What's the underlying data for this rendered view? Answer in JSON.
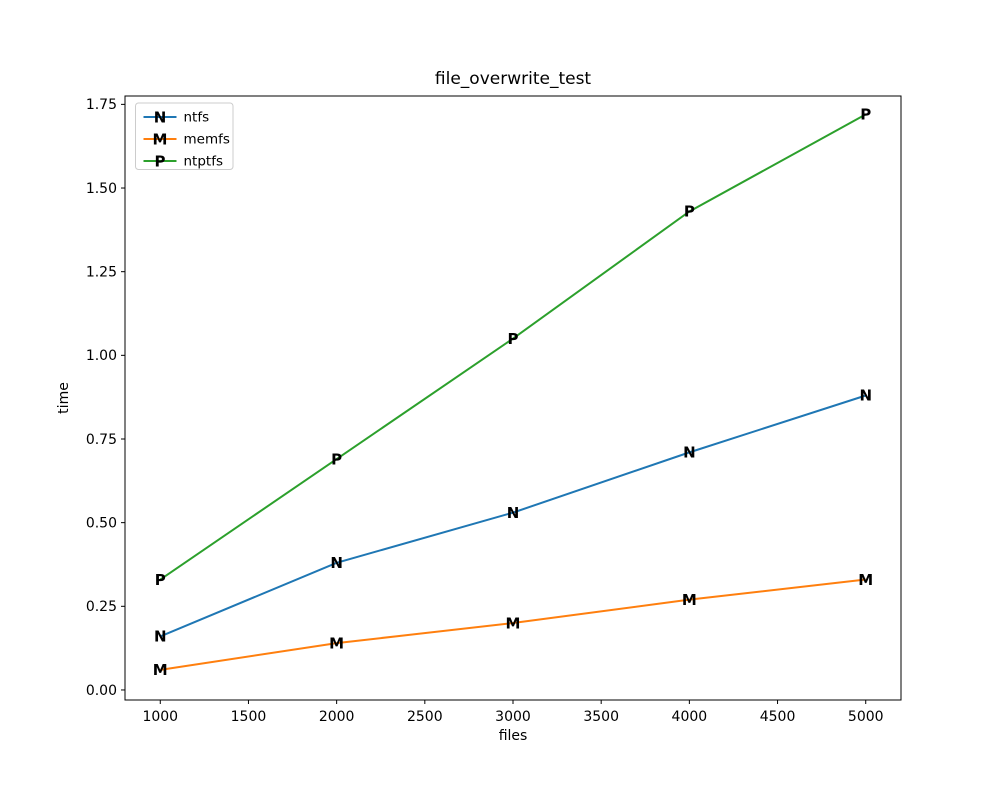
{
  "chart_data": {
    "type": "line",
    "title": "file_overwrite_test",
    "xlabel": "files",
    "ylabel": "time",
    "x": [
      1000,
      2000,
      3000,
      4000,
      5000
    ],
    "series": [
      {
        "name": "ntfs",
        "marker": "N",
        "color": "#1f77b4",
        "values": [
          0.16,
          0.38,
          0.53,
          0.71,
          0.88
        ]
      },
      {
        "name": "memfs",
        "marker": "M",
        "color": "#ff7f0e",
        "values": [
          0.06,
          0.14,
          0.2,
          0.27,
          0.33
        ]
      },
      {
        "name": "ntptfs",
        "marker": "P",
        "color": "#2ca02c",
        "values": [
          0.33,
          0.69,
          1.05,
          1.43,
          1.72
        ]
      }
    ],
    "x_ticks": [
      1000,
      1500,
      2000,
      2500,
      3000,
      3500,
      4000,
      4500,
      5000
    ],
    "x_tick_labels": [
      "1000",
      "1500",
      "2000",
      "2500",
      "3000",
      "3500",
      "4000",
      "4500",
      "5000"
    ],
    "y_ticks": [
      0.0,
      0.25,
      0.5,
      0.75,
      1.0,
      1.25,
      1.5,
      1.75
    ],
    "y_tick_labels": [
      "0.00",
      "0.25",
      "0.50",
      "0.75",
      "1.00",
      "1.25",
      "1.50",
      "1.75"
    ],
    "xlim": [
      800,
      5200
    ],
    "ylim": [
      -0.03,
      1.775
    ],
    "grid": false,
    "legend_position": "upper left",
    "legend_border_color": "#cccccc",
    "spine_color": "#000000"
  }
}
